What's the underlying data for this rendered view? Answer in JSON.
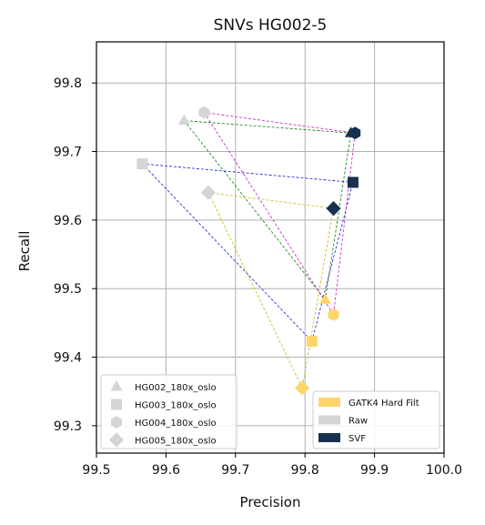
{
  "chart_data": {
    "type": "scatter",
    "title": "SNVs HG002-5",
    "xlabel": "Precision",
    "ylabel": "Recall",
    "xlim": [
      99.5,
      100.0
    ],
    "ylim": [
      99.26,
      99.86
    ],
    "xticks": [
      "99.5",
      "99.6",
      "99.7",
      "99.8",
      "99.9",
      "100.0"
    ],
    "yticks": [
      "99.3",
      "99.4",
      "99.5",
      "99.6",
      "99.7",
      "99.8"
    ],
    "grid": true,
    "samples": [
      {
        "name": "HG002_180x_oslo",
        "marker": "triangle",
        "line_color": "#0b7a0b",
        "points": [
          {
            "method": "Raw",
            "x": 99.626,
            "y": 99.745
          },
          {
            "method": "GATK4 Hard Filt",
            "x": 99.829,
            "y": 99.484
          },
          {
            "method": "SVF",
            "x": 99.866,
            "y": 99.727
          }
        ]
      },
      {
        "name": "HG003_180x_oslo",
        "marker": "square",
        "line_color": "#1a1adc",
        "points": [
          {
            "method": "Raw",
            "x": 99.566,
            "y": 99.682
          },
          {
            "method": "GATK4 Hard Filt",
            "x": 99.81,
            "y": 99.423
          },
          {
            "method": "SVF",
            "x": 99.869,
            "y": 99.655
          }
        ]
      },
      {
        "name": "HG004_180x_oslo",
        "marker": "hexagon",
        "line_color": "#c41bc4",
        "points": [
          {
            "method": "Raw",
            "x": 99.655,
            "y": 99.757
          },
          {
            "method": "GATK4 Hard Filt",
            "x": 99.841,
            "y": 99.462
          },
          {
            "method": "SVF",
            "x": 99.872,
            "y": 99.727
          }
        ]
      },
      {
        "name": "HG005_180x_oslo",
        "marker": "diamond",
        "line_color": "#c8b414",
        "points": [
          {
            "method": "Raw",
            "x": 99.661,
            "y": 99.64
          },
          {
            "method": "GATK4 Hard Filt",
            "x": 99.796,
            "y": 99.355
          },
          {
            "method": "SVF",
            "x": 99.841,
            "y": 99.617
          }
        ]
      }
    ],
    "methods": [
      {
        "name": "GATK4 Hard Filt",
        "color": "#fdd56b"
      },
      {
        "name": "Raw",
        "color": "#d5d5d5"
      },
      {
        "name": "SVF",
        "color": "#17304f"
      }
    ],
    "legend_placement": {
      "samples": "lower-left",
      "methods": "lower-right"
    }
  }
}
